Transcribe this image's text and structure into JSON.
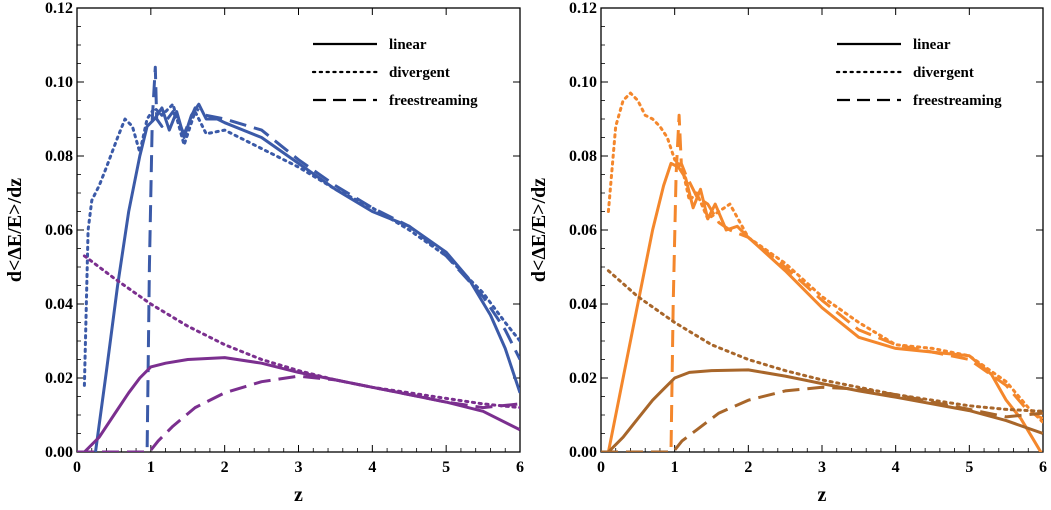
{
  "chart_data": [
    {
      "type": "line",
      "xlabel": "z",
      "ylabel": "d<ΔE/E>/dz",
      "xlim": [
        0,
        6
      ],
      "ylim": [
        0,
        0.12
      ],
      "xticks": [
        "0",
        "1",
        "2",
        "3",
        "4",
        "5",
        "6"
      ],
      "yticks": [
        "0.00",
        "0.02",
        "0.04",
        "0.06",
        "0.08",
        "0.10",
        "0.12"
      ],
      "grid": false,
      "legend_position": "top-right",
      "legend": [
        {
          "label": "linear",
          "style": "solid"
        },
        {
          "label": "divergent",
          "style": "dotted"
        },
        {
          "label": "freestreaming",
          "style": "dashed"
        }
      ],
      "series": [
        {
          "color": "#3b5aa8",
          "style": "solid",
          "x": [
            0.25,
            0.4,
            0.55,
            0.7,
            0.85,
            0.95,
            1.05,
            1.15,
            1.25,
            1.35,
            1.45,
            1.55,
            1.65,
            1.75,
            1.9,
            2.0,
            2.5,
            3.0,
            3.5,
            4.0,
            4.5,
            5.0,
            5.3,
            5.6,
            5.8,
            5.9,
            6.0
          ],
          "y": [
            0.0,
            0.022,
            0.045,
            0.065,
            0.08,
            0.088,
            0.09,
            0.093,
            0.087,
            0.092,
            0.085,
            0.091,
            0.094,
            0.09,
            0.09,
            0.089,
            0.085,
            0.078,
            0.071,
            0.065,
            0.061,
            0.054,
            0.047,
            0.037,
            0.028,
            0.022,
            0.016
          ]
        },
        {
          "color": "#3b5aa8",
          "style": "dotted",
          "x": [
            0.1,
            0.15,
            0.2,
            0.3,
            0.4,
            0.55,
            0.65,
            0.75,
            0.85,
            0.95,
            1.05,
            1.15,
            1.3,
            1.45,
            1.6,
            1.75,
            2.0,
            2.5,
            3.0,
            3.5,
            4.0,
            4.5,
            5.0,
            5.5,
            5.8,
            6.0
          ],
          "y": [
            0.018,
            0.06,
            0.068,
            0.072,
            0.077,
            0.085,
            0.09,
            0.088,
            0.081,
            0.09,
            0.093,
            0.091,
            0.094,
            0.083,
            0.092,
            0.086,
            0.087,
            0.082,
            0.077,
            0.071,
            0.066,
            0.06,
            0.053,
            0.043,
            0.035,
            0.03
          ]
        },
        {
          "color": "#3b5aa8",
          "style": "dashed",
          "x": [
            0.0,
            0.95,
            0.98,
            1.02,
            1.06,
            1.08,
            1.15,
            1.3,
            1.45,
            1.6,
            1.75,
            2.0,
            2.5,
            3.0,
            3.5,
            4.0,
            4.5,
            5.0,
            5.5,
            5.8,
            6.0
          ],
          "y": [
            0.0,
            0.0,
            0.05,
            0.09,
            0.104,
            0.09,
            0.088,
            0.092,
            0.086,
            0.093,
            0.091,
            0.09,
            0.087,
            0.079,
            0.072,
            0.066,
            0.061,
            0.053,
            0.042,
            0.033,
            0.025
          ]
        },
        {
          "color": "#7b2f8f",
          "style": "solid",
          "x": [
            0.1,
            0.3,
            0.5,
            0.7,
            0.85,
            1.0,
            1.2,
            1.5,
            2.0,
            2.5,
            3.0,
            3.5,
            4.0,
            4.5,
            5.0,
            5.5,
            6.0
          ],
          "y": [
            0.0,
            0.004,
            0.01,
            0.016,
            0.02,
            0.023,
            0.024,
            0.025,
            0.0255,
            0.024,
            0.0215,
            0.0195,
            0.0175,
            0.0155,
            0.0135,
            0.011,
            0.006
          ]
        },
        {
          "color": "#7b2f8f",
          "style": "dotted",
          "x": [
            0.1,
            0.5,
            1.0,
            1.5,
            2.0,
            2.5,
            3.0,
            3.5,
            4.0,
            4.5,
            5.0,
            5.5,
            6.0
          ],
          "y": [
            0.053,
            0.047,
            0.04,
            0.034,
            0.029,
            0.025,
            0.022,
            0.0195,
            0.0175,
            0.016,
            0.0145,
            0.013,
            0.012
          ]
        },
        {
          "color": "#7b2f8f",
          "style": "dashed",
          "x": [
            0.0,
            0.98,
            1.1,
            1.3,
            1.6,
            2.0,
            2.5,
            3.0,
            3.5,
            4.0,
            4.5,
            5.0,
            5.5,
            6.0
          ],
          "y": [
            0.0,
            0.0,
            0.003,
            0.007,
            0.012,
            0.016,
            0.019,
            0.0205,
            0.0195,
            0.0175,
            0.0155,
            0.0135,
            0.012,
            0.013
          ]
        }
      ]
    },
    {
      "type": "line",
      "xlabel": "z",
      "ylabel": "d<ΔE/E>/dz",
      "xlim": [
        0,
        6
      ],
      "ylim": [
        0,
        0.12
      ],
      "xticks": [
        "0",
        "1",
        "2",
        "3",
        "4",
        "5",
        "6"
      ],
      "yticks": [
        "0.00",
        "0.02",
        "0.04",
        "0.06",
        "0.08",
        "0.10",
        "0.12"
      ],
      "grid": false,
      "legend_position": "top-right",
      "legend": [
        {
          "label": "linear",
          "style": "solid"
        },
        {
          "label": "divergent",
          "style": "dotted"
        },
        {
          "label": "freestreaming",
          "style": "dashed"
        }
      ],
      "series": [
        {
          "color": "#f4872c",
          "style": "solid",
          "x": [
            0.1,
            0.3,
            0.5,
            0.7,
            0.85,
            0.95,
            1.05,
            1.15,
            1.25,
            1.35,
            1.45,
            1.55,
            1.7,
            1.85,
            2.0,
            2.5,
            3.0,
            3.5,
            4.0,
            4.5,
            5.0,
            5.3,
            5.5,
            5.7,
            5.85,
            6.0
          ],
          "y": [
            0.0,
            0.02,
            0.04,
            0.06,
            0.072,
            0.078,
            0.077,
            0.074,
            0.066,
            0.071,
            0.063,
            0.067,
            0.06,
            0.061,
            0.058,
            0.049,
            0.039,
            0.031,
            0.028,
            0.027,
            0.026,
            0.021,
            0.014,
            0.009,
            0.004,
            -0.001
          ]
        },
        {
          "color": "#f4872c",
          "style": "dotted",
          "x": [
            0.1,
            0.2,
            0.3,
            0.4,
            0.5,
            0.6,
            0.7,
            0.8,
            0.9,
            1.0,
            1.1,
            1.2,
            1.3,
            1.45,
            1.6,
            1.75,
            2.0,
            2.5,
            3.0,
            3.5,
            4.0,
            4.5,
            5.0,
            5.5,
            5.8,
            6.0
          ],
          "y": [
            0.065,
            0.088,
            0.095,
            0.097,
            0.095,
            0.091,
            0.09,
            0.088,
            0.085,
            0.079,
            0.077,
            0.068,
            0.07,
            0.063,
            0.065,
            0.067,
            0.058,
            0.051,
            0.042,
            0.035,
            0.029,
            0.028,
            0.026,
            0.019,
            0.012,
            0.008
          ]
        },
        {
          "color": "#f4872c",
          "style": "dashed",
          "x": [
            0.0,
            0.95,
            0.98,
            1.02,
            1.06,
            1.09,
            1.15,
            1.3,
            1.45,
            1.6,
            1.75,
            2.0,
            2.5,
            3.0,
            3.5,
            4.0,
            4.5,
            5.0,
            5.5,
            5.8,
            6.0
          ],
          "y": [
            0.0,
            0.0,
            0.04,
            0.075,
            0.091,
            0.078,
            0.075,
            0.069,
            0.067,
            0.062,
            0.06,
            0.058,
            0.05,
            0.041,
            0.033,
            0.029,
            0.027,
            0.025,
            0.018,
            0.011,
            0.009
          ]
        },
        {
          "color": "#a8662a",
          "style": "solid",
          "x": [
            0.1,
            0.3,
            0.5,
            0.7,
            0.85,
            1.0,
            1.2,
            1.5,
            2.0,
            2.5,
            3.0,
            3.5,
            4.0,
            4.5,
            5.0,
            5.5,
            6.0
          ],
          "y": [
            0.0,
            0.004,
            0.009,
            0.014,
            0.017,
            0.02,
            0.0215,
            0.022,
            0.0222,
            0.0205,
            0.0185,
            0.0165,
            0.0148,
            0.013,
            0.0112,
            0.0085,
            0.005
          ]
        },
        {
          "color": "#a8662a",
          "style": "dotted",
          "x": [
            0.1,
            0.5,
            1.0,
            1.5,
            2.0,
            2.5,
            3.0,
            3.5,
            4.0,
            4.5,
            5.0,
            5.5,
            6.0
          ],
          "y": [
            0.049,
            0.042,
            0.035,
            0.029,
            0.025,
            0.022,
            0.0195,
            0.0175,
            0.0155,
            0.014,
            0.0125,
            0.0115,
            0.011
          ]
        },
        {
          "color": "#a8662a",
          "style": "dashed",
          "x": [
            0.0,
            0.98,
            1.1,
            1.3,
            1.6,
            2.0,
            2.5,
            3.0,
            3.5,
            4.0,
            4.5,
            5.0,
            5.5,
            6.0
          ],
          "y": [
            0.0,
            0.0,
            0.003,
            0.006,
            0.0105,
            0.014,
            0.0165,
            0.0175,
            0.017,
            0.0155,
            0.0135,
            0.0115,
            0.0095,
            0.0105
          ]
        }
      ]
    }
  ]
}
